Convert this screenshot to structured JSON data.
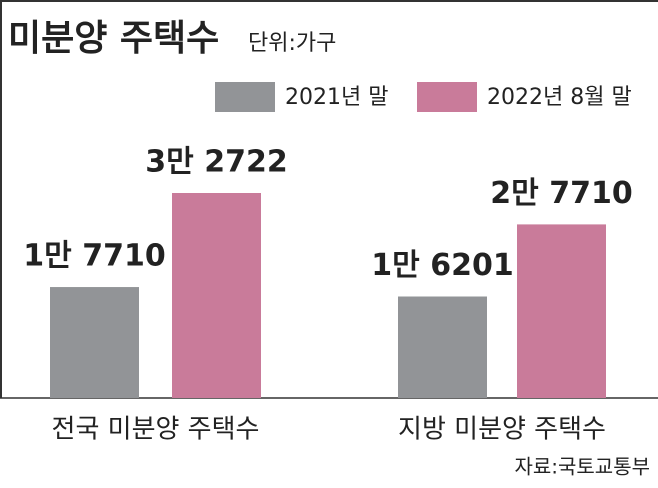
{
  "chart_data": {
    "type": "bar",
    "title": "미분양 주택수",
    "subtitle": "단위:가구",
    "source": "자료:국토교통부",
    "categories": [
      "전국 미분양 주택수",
      "지방 미분양 주택수"
    ],
    "series": [
      {
        "name": "2021년 말",
        "color": "#929497",
        "values": [
          17710,
          16201
        ],
        "value_labels": [
          "1만 7710",
          "1만 6201"
        ]
      },
      {
        "name": "2022년 8월 말",
        "color": "#c97b9a",
        "values": [
          32722,
          27710
        ],
        "value_labels": [
          "3만 2722",
          "2만 7710"
        ]
      }
    ]
  }
}
